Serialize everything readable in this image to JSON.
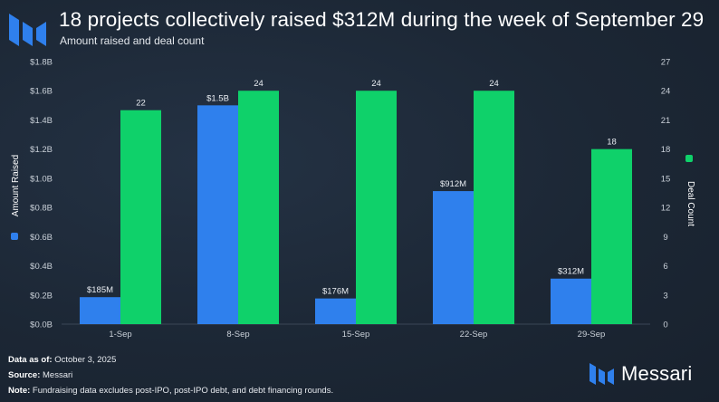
{
  "header": {
    "title": "18 projects collectively raised $312M during the week of September 29",
    "subtitle": "Amount raised and deal count"
  },
  "chart_data": {
    "type": "bar",
    "categories": [
      "1-Sep",
      "8-Sep",
      "15-Sep",
      "22-Sep",
      "29-Sep"
    ],
    "series": [
      {
        "name": "Amount Raised",
        "axis": "left",
        "color": "#2f80ed",
        "values": [
          0.185,
          1.5,
          0.176,
          0.912,
          0.312
        ],
        "labels": [
          "$185M",
          "$1.5B",
          "$176M",
          "$912M",
          "$312M"
        ]
      },
      {
        "name": "Deal Count",
        "axis": "right",
        "color": "#0fd16a",
        "values": [
          22,
          24,
          24,
          24,
          18
        ],
        "labels": [
          "22",
          "24",
          "24",
          "24",
          "18"
        ]
      }
    ],
    "left_axis": {
      "label": "Amount Raised",
      "ylim": [
        0,
        1.8
      ],
      "ticks": [
        "$0.0B",
        "$0.2B",
        "$0.4B",
        "$0.6B",
        "$0.8B",
        "$1.0B",
        "$1.2B",
        "$1.4B",
        "$1.6B",
        "$1.8B"
      ]
    },
    "right_axis": {
      "label": "Deal Count",
      "ylim": [
        0,
        27
      ],
      "ticks": [
        "0",
        "3",
        "6",
        "9",
        "12",
        "15",
        "18",
        "21",
        "24",
        "27"
      ]
    },
    "grid": false,
    "legend": "axis-labels"
  },
  "footer": {
    "data_as_of_label": "Data as of:",
    "data_as_of_value": "October 3, 2025",
    "source_label": "Source:",
    "source_value": "Messari",
    "note_label": "Note:",
    "note_value": "Fundraising data excludes post-IPO, post-IPO debt, and debt financing rounds."
  },
  "brand": {
    "name": "Messari",
    "color": "#2f80ed"
  }
}
